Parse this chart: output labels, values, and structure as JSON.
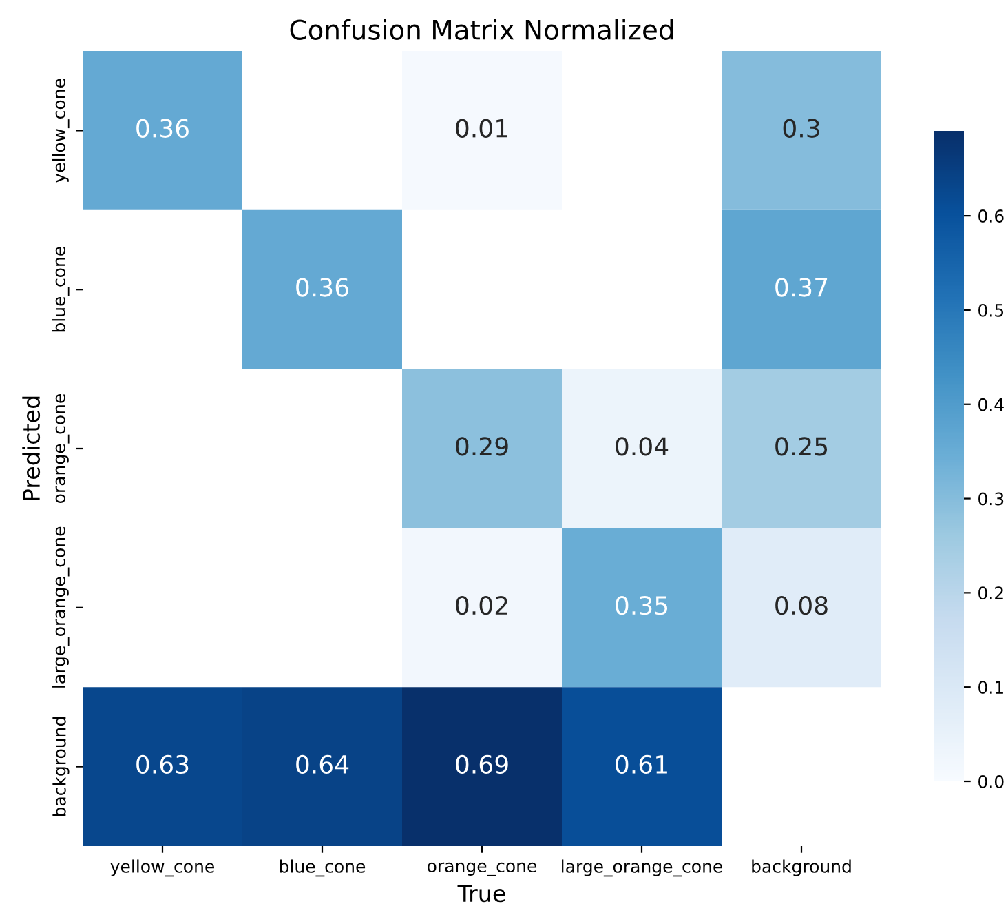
{
  "chart_data": {
    "type": "heatmap",
    "title": "Confusion Matrix Normalized",
    "xlabel": "True",
    "ylabel": "Predicted",
    "categories": [
      "yellow_cone",
      "blue_cone",
      "orange_cone",
      "large_orange_cone",
      "background"
    ],
    "y_categories": [
      "yellow_cone",
      "blue_cone",
      "orange_cone",
      "large_orange_cone",
      "background"
    ],
    "cells": [
      [
        0.36,
        null,
        0.01,
        null,
        0.3
      ],
      [
        null,
        0.36,
        null,
        null,
        0.37
      ],
      [
        null,
        null,
        0.29,
        0.04,
        0.25
      ],
      [
        null,
        null,
        0.02,
        0.35,
        0.08
      ],
      [
        0.63,
        0.64,
        0.69,
        0.61,
        null
      ]
    ],
    "data_labels": true,
    "clim": [
      0,
      0.69
    ],
    "cticks": [
      {
        "value": 0,
        "label": "0.0"
      },
      0.1,
      0.2,
      0.3,
      0.4,
      0.5,
      0.6
    ]
  }
}
